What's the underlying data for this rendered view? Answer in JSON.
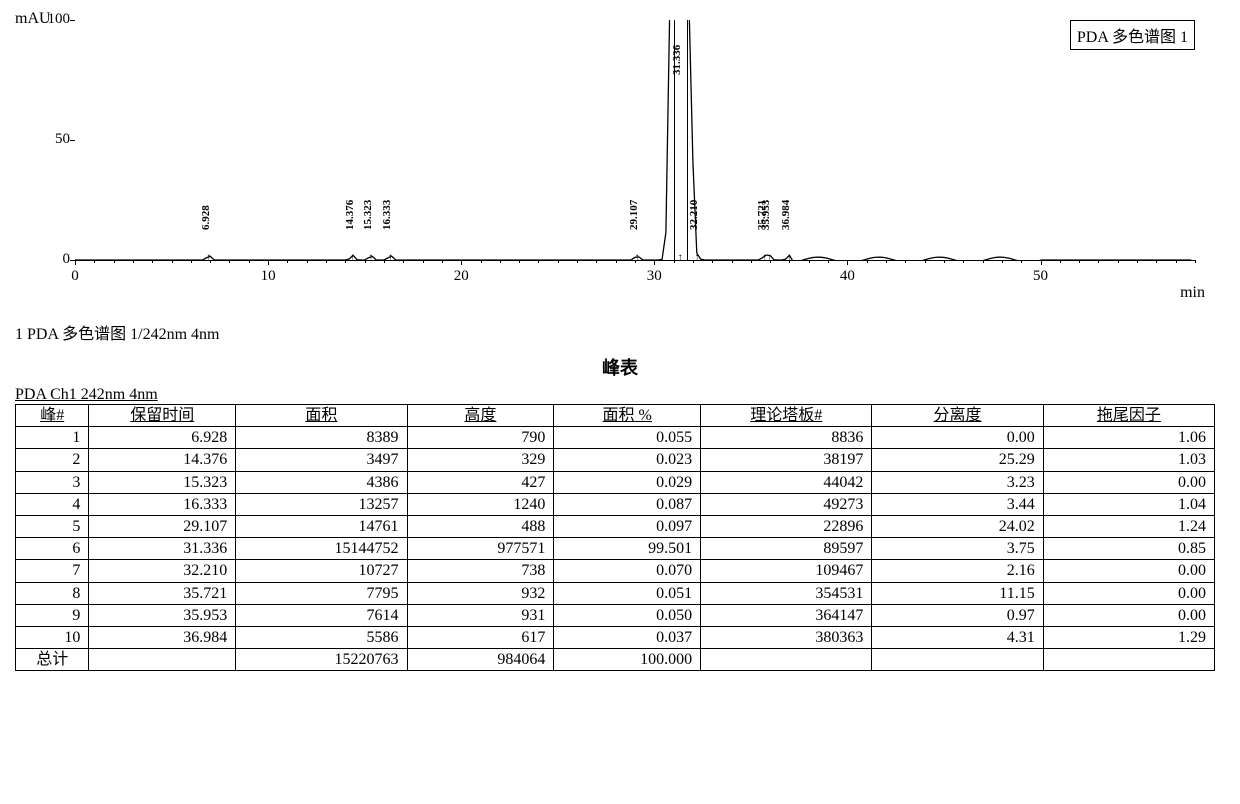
{
  "chart": {
    "y_axis_label": "mAU",
    "x_axis_label": "min",
    "title": "PDA 多色谱图 1",
    "ylim": [
      0,
      100
    ],
    "xlim": [
      0,
      58
    ],
    "y_ticks": [
      0,
      50,
      100
    ],
    "x_ticks": [
      0,
      10,
      20,
      30,
      40,
      50
    ],
    "baseline_y": 0,
    "line_color": "#000000",
    "background_color": "#ffffff",
    "peak_labels": [
      {
        "rt": 6.928,
        "label": "6.928"
      },
      {
        "rt": 14.376,
        "label": "14.376"
      },
      {
        "rt": 15.323,
        "label": "15.323"
      },
      {
        "rt": 16.333,
        "label": "16.333"
      },
      {
        "rt": 29.107,
        "label": "29.107"
      },
      {
        "rt": 31.336,
        "label": "31.336"
      },
      {
        "rt": 32.21,
        "label": "32.210"
      },
      {
        "rt": 35.721,
        "label": "35.721"
      },
      {
        "rt": 35.953,
        "label": "35.953"
      },
      {
        "rt": 36.984,
        "label": "36.984"
      }
    ],
    "main_peak_rt": 31.336,
    "main_peak_offscale": true
  },
  "caption": "1  PDA 多色谱图 1/242nm 4nm",
  "table_title": "峰表",
  "table_subtitle": "PDA Ch1 242nm 4nm",
  "table": {
    "columns": [
      "峰#",
      "保留时间",
      "面积",
      "高度",
      "面积 %",
      "理论塔板#",
      "分离度",
      "拖尾因子"
    ],
    "rows": [
      [
        "1",
        "6.928",
        "8389",
        "790",
        "0.055",
        "8836",
        "0.00",
        "1.06"
      ],
      [
        "2",
        "14.376",
        "3497",
        "329",
        "0.023",
        "38197",
        "25.29",
        "1.03"
      ],
      [
        "3",
        "15.323",
        "4386",
        "427",
        "0.029",
        "44042",
        "3.23",
        "0.00"
      ],
      [
        "4",
        "16.333",
        "13257",
        "1240",
        "0.087",
        "49273",
        "3.44",
        "1.04"
      ],
      [
        "5",
        "29.107",
        "14761",
        "488",
        "0.097",
        "22896",
        "24.02",
        "1.24"
      ],
      [
        "6",
        "31.336",
        "15144752",
        "977571",
        "99.501",
        "89597",
        "3.75",
        "0.85"
      ],
      [
        "7",
        "32.210",
        "10727",
        "738",
        "0.070",
        "109467",
        "2.16",
        "0.00"
      ],
      [
        "8",
        "35.721",
        "7795",
        "932",
        "0.051",
        "354531",
        "11.15",
        "0.00"
      ],
      [
        "9",
        "35.953",
        "7614",
        "931",
        "0.050",
        "364147",
        "0.97",
        "0.00"
      ],
      [
        "10",
        "36.984",
        "5586",
        "617",
        "0.037",
        "380363",
        "4.31",
        "1.29"
      ]
    ],
    "total_row": [
      "总计",
      "",
      "15220763",
      "984064",
      "100.000",
      "",
      "",
      ""
    ]
  }
}
